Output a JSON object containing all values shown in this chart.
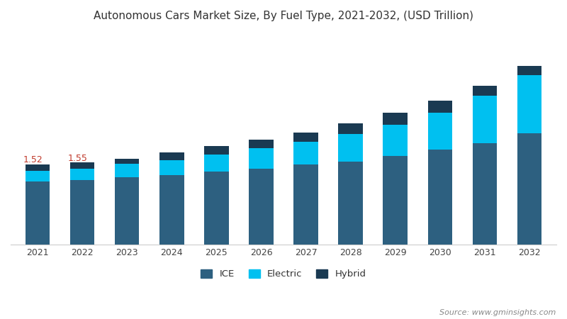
{
  "title": "Autonomous Cars Market Size, By Fuel Type, 2021-2032, (USD Trillion)",
  "years": [
    2021,
    2022,
    2023,
    2024,
    2025,
    2026,
    2027,
    2028,
    2029,
    2030,
    2031,
    2032
  ],
  "ice": [
    1.2,
    1.22,
    1.28,
    1.32,
    1.38,
    1.44,
    1.52,
    1.57,
    1.68,
    1.8,
    1.92,
    2.1
  ],
  "electric": [
    0.2,
    0.22,
    0.25,
    0.28,
    0.32,
    0.38,
    0.42,
    0.52,
    0.58,
    0.7,
    0.9,
    1.1
  ],
  "hybrid": [
    0.12,
    0.11,
    0.1,
    0.14,
    0.17,
    0.16,
    0.18,
    0.2,
    0.24,
    0.22,
    0.18,
    0.18
  ],
  "annotations": {
    "2021": "1.52",
    "2022": "1.55"
  },
  "colors": {
    "ice": "#2d6080",
    "electric": "#00c0f0",
    "hybrid": "#1a3a52"
  },
  "legend_labels": [
    "ICE",
    "Electric",
    "Hybrid"
  ],
  "background_color": "#ffffff",
  "title_color": "#333333",
  "annotation_color": "#c0392b",
  "source_text": "Source: www.gminsights.com",
  "bar_width": 0.55,
  "ylim": [
    0,
    4.0
  ]
}
